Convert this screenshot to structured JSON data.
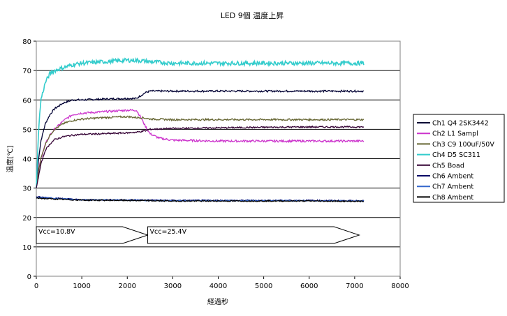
{
  "chart_data": {
    "type": "line",
    "title": "LED 9個 温度上昇",
    "xlabel": "経過秒",
    "ylabel": "温度[℃]",
    "xlim": [
      0,
      8000
    ],
    "ylim": [
      0,
      80
    ],
    "xticks": [
      "0",
      "1000",
      "2000",
      "3000",
      "4000",
      "5000",
      "6000",
      "7000",
      "8000"
    ],
    "yticks": [
      "0",
      "10",
      "20",
      "30",
      "40",
      "50",
      "60",
      "70",
      "80"
    ],
    "grid": "horizontal",
    "legend_position": "right",
    "annotations": [
      {
        "text": "Vcc=10.8V",
        "x_start": 0,
        "x_end": 2450,
        "y": 14
      },
      {
        "text": "Vcc=25.4V",
        "x_start": 2450,
        "x_end": 7100,
        "y": 14
      }
    ],
    "series": [
      {
        "name": "Ch1 Q4 2SK3442",
        "color": "#000033",
        "x": [
          0,
          50,
          100,
          200,
          300,
          400,
          600,
          800,
          1000,
          1500,
          2000,
          2200,
          2300,
          2400,
          2500,
          3000,
          4000,
          5000,
          6000,
          7000,
          7200
        ],
        "y": [
          30,
          40,
          46,
          52,
          55,
          57,
          59,
          60,
          60,
          60.3,
          60.5,
          60.5,
          61.5,
          62.5,
          63,
          63,
          63,
          63,
          63,
          63,
          63
        ]
      },
      {
        "name": "Ch2 L1 Sampl",
        "color": "#cc33cc",
        "x": [
          0,
          50,
          100,
          200,
          300,
          400,
          600,
          800,
          1000,
          1500,
          2000,
          2200,
          2300,
          2400,
          2500,
          2700,
          3000,
          4000,
          5000,
          6000,
          7000,
          7200
        ],
        "y": [
          30,
          36,
          40,
          45,
          48,
          50,
          53,
          55,
          55.5,
          56,
          56.5,
          56.5,
          54,
          51,
          48.5,
          47,
          46.3,
          46,
          46,
          46,
          46,
          46
        ]
      },
      {
        "name": "Ch3 C9 100uF/50V",
        "color": "#666633",
        "x": [
          0,
          50,
          100,
          200,
          300,
          400,
          600,
          800,
          1000,
          1500,
          2000,
          2200,
          2300,
          2400,
          2500,
          3000,
          4000,
          5000,
          6000,
          7000,
          7200
        ],
        "y": [
          30,
          36,
          40,
          45,
          48,
          50,
          52,
          53,
          53.5,
          54,
          54.3,
          54,
          54,
          53.8,
          53.5,
          53.3,
          53.3,
          53.3,
          53.3,
          53.3,
          53.3
        ]
      },
      {
        "name": "Ch4 D5 SC311",
        "color": "#33cccc",
        "x": [
          0,
          50,
          100,
          200,
          300,
          400,
          600,
          800,
          1000,
          1500,
          2000,
          2200,
          2500,
          3000,
          4000,
          5000,
          6000,
          7000,
          7200
        ],
        "y": [
          30,
          50,
          60,
          66,
          69,
          70,
          71,
          72,
          72.5,
          73,
          73.5,
          73.5,
          73,
          72.5,
          72.5,
          72.5,
          72.5,
          72.5,
          72.5
        ]
      },
      {
        "name": "Ch5 Boad",
        "color": "#330033",
        "x": [
          0,
          50,
          100,
          200,
          300,
          400,
          600,
          800,
          1000,
          1500,
          2000,
          2200,
          2400,
          2500,
          3000,
          4000,
          5000,
          6000,
          7000,
          7200
        ],
        "y": [
          30,
          34,
          38,
          43,
          45,
          46.5,
          47.5,
          48,
          48.3,
          48.5,
          48.8,
          49,
          49.5,
          50,
          50.3,
          50.5,
          50.7,
          50.8,
          50.8,
          50.8
        ]
      },
      {
        "name": "Ch6 Ambent",
        "color": "#000066",
        "x": [
          0,
          500,
          1000,
          2000,
          3000,
          4000,
          5000,
          6000,
          7000,
          7200
        ],
        "y": [
          27,
          26.5,
          26,
          26,
          25.8,
          25.8,
          25.8,
          25.8,
          25.7,
          25.7
        ]
      },
      {
        "name": "Ch7 Ambent",
        "color": "#3366cc",
        "x": [
          0,
          500,
          1000,
          2000,
          3000,
          4000,
          5000,
          6000,
          7000,
          7200
        ],
        "y": [
          26.8,
          26.4,
          26,
          25.9,
          25.7,
          25.7,
          25.7,
          25.7,
          25.6,
          25.6
        ]
      },
      {
        "name": "Ch8 Ambent",
        "color": "#000000",
        "x": [
          0,
          500,
          1000,
          2000,
          3000,
          4000,
          5000,
          6000,
          7000,
          7200
        ],
        "y": [
          26.6,
          26.2,
          25.9,
          25.8,
          25.6,
          25.6,
          25.6,
          25.6,
          25.5,
          25.5
        ]
      }
    ]
  }
}
